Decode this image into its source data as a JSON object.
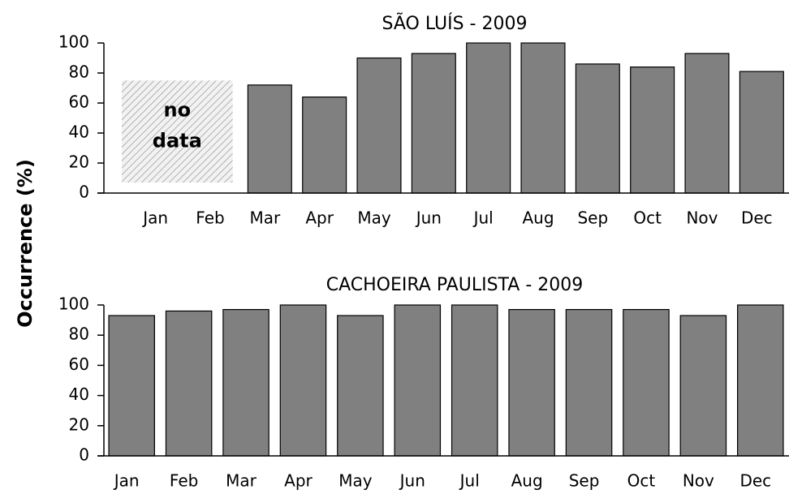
{
  "y_axis_label": "Occurrence (%)",
  "chart_data": [
    {
      "type": "bar",
      "title": "SÃO LUÍS - 2009",
      "categories": [
        "Jan",
        "Feb",
        "Mar",
        "Apr",
        "May",
        "Jun",
        "Jul",
        "Aug",
        "Sep",
        "Oct",
        "Nov",
        "Dec"
      ],
      "values": [
        null,
        null,
        72,
        64,
        90,
        93,
        100,
        100,
        86,
        84,
        93,
        81
      ],
      "color": "#808080",
      "ylim": [
        0,
        100
      ],
      "yticks": [
        0,
        20,
        40,
        60,
        80,
        100
      ],
      "annotation_lines": [
        "no",
        "data"
      ]
    },
    {
      "type": "bar",
      "title": "CACHOEIRA PAULISTA - 2009",
      "categories": [
        "Jan",
        "Feb",
        "Mar",
        "Apr",
        "May",
        "Jun",
        "Jul",
        "Aug",
        "Sep",
        "Oct",
        "Nov",
        "Dec"
      ],
      "values": [
        93,
        96,
        97,
        100,
        93,
        100,
        100,
        97,
        97,
        97,
        93,
        100
      ],
      "color": "#808080",
      "ylim": [
        0,
        100
      ],
      "yticks": [
        0,
        20,
        40,
        60,
        80,
        100
      ]
    }
  ]
}
